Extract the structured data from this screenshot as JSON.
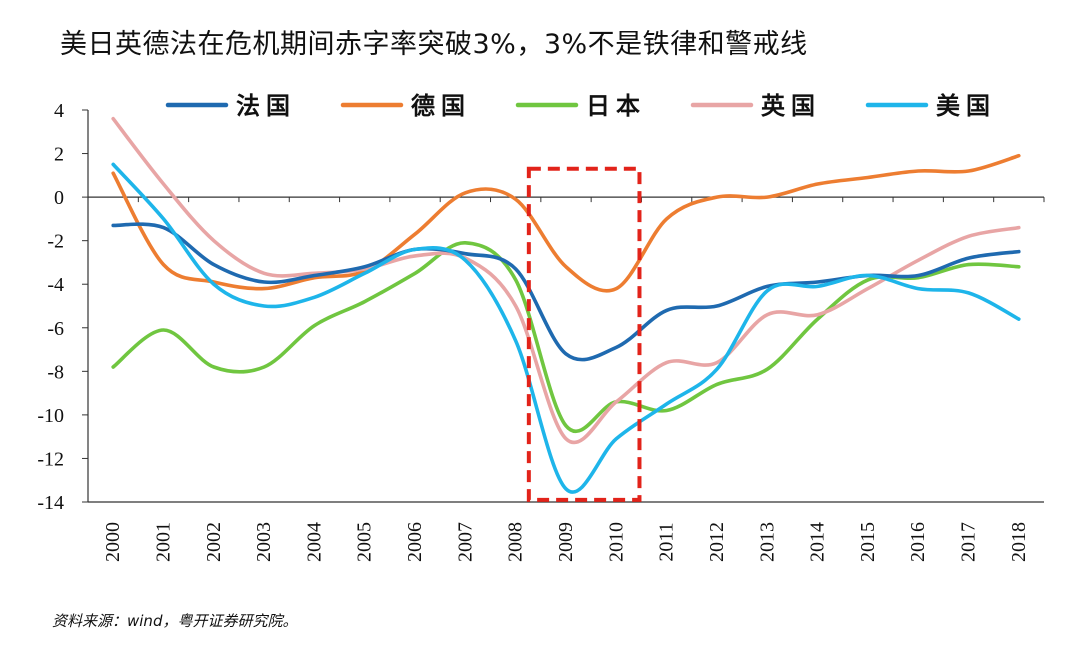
{
  "chart_data": {
    "type": "line",
    "title": "美日英德法在危机期间赤字率突破3%，3%不是铁律和警戒线",
    "source": "资料来源：wind，粤开证券研究院。",
    "x": [
      "2000",
      "2001",
      "2002",
      "2003",
      "2004",
      "2005",
      "2006",
      "2007",
      "2008",
      "2009",
      "2010",
      "2011",
      "2012",
      "2013",
      "2014",
      "2015",
      "2016",
      "2017",
      "2018"
    ],
    "ylim": [
      -14,
      4
    ],
    "yticks": [
      4,
      2,
      0,
      -2,
      -4,
      -6,
      -8,
      -10,
      -12,
      -14
    ],
    "legend_position": "top",
    "grid": false,
    "series": [
      {
        "name": "法国",
        "color": "#1f6ab0",
        "values": [
          -1.3,
          -1.4,
          -3.1,
          -3.9,
          -3.6,
          -3.2,
          -2.4,
          -2.6,
          -3.3,
          -7.2,
          -6.9,
          -5.2,
          -5.0,
          -4.1,
          -3.9,
          -3.6,
          -3.6,
          -2.8,
          -2.5
        ]
      },
      {
        "name": "德国",
        "color": "#ed7d31",
        "values": [
          1.1,
          -3.1,
          -3.9,
          -4.2,
          -3.7,
          -3.4,
          -1.7,
          0.2,
          -0.1,
          -3.2,
          -4.2,
          -1.0,
          0.0,
          0.0,
          0.6,
          0.9,
          1.2,
          1.2,
          1.9
        ]
      },
      {
        "name": "日本",
        "color": "#70c640",
        "values": [
          -7.8,
          -6.1,
          -7.8,
          -7.8,
          -5.9,
          -4.8,
          -3.5,
          -2.1,
          -3.8,
          -10.5,
          -9.4,
          -9.8,
          -8.6,
          -7.9,
          -5.6,
          -3.8,
          -3.7,
          -3.1,
          -3.2
        ]
      },
      {
        "name": "英国",
        "color": "#e8a5a5",
        "values": [
          3.6,
          0.6,
          -2.0,
          -3.5,
          -3.5,
          -3.3,
          -2.7,
          -2.8,
          -5.0,
          -11.1,
          -9.4,
          -7.6,
          -7.6,
          -5.4,
          -5.4,
          -4.2,
          -2.9,
          -1.8,
          -1.4
        ]
      },
      {
        "name": "美国",
        "color": "#1eb5ea",
        "values": [
          1.5,
          -1.0,
          -4.0,
          -5.0,
          -4.6,
          -3.5,
          -2.4,
          -2.9,
          -6.6,
          -13.4,
          -11.1,
          -9.5,
          -7.9,
          -4.3,
          -4.1,
          -3.6,
          -4.2,
          -4.4,
          -5.6
        ]
      }
    ],
    "highlight": {
      "from": "2009",
      "to": "2011",
      "style": "dashed-box",
      "color": "#e2231a"
    }
  }
}
